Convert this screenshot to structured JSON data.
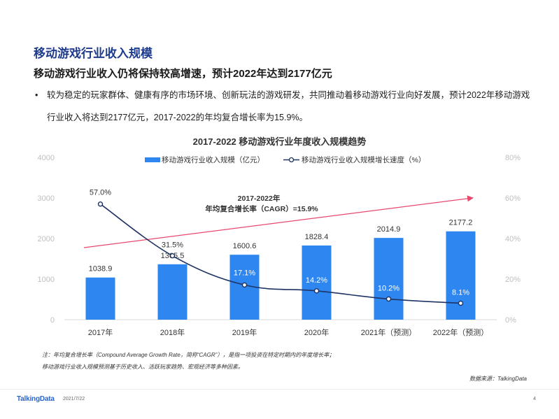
{
  "page": {
    "title": "移动游戏行业收入规模",
    "subtitle": "移动游戏行业收入仍将保持较高增速，预计2022年达到2177亿元",
    "bullet_marker": "•",
    "bullet": "较为稳定的玩家群体、健康有序的市场环境、创新玩法的游戏研发，共同推动着移动游戏行业向好发展，预计2022年移动游戏行业收入将达到2177亿元，2017-2022的年均复合增长率为15.9%。",
    "note1": "注：年均复合增长率（Compound Average Growth Rate，简称“CAGR”），是指一项投资在特定时期内的年度增长率；",
    "note2": "移动游戏行业收入规模预测基于历史收入、活跃玩家趋势、宏观经济等多种因素。",
    "source": "数据来源：TalkingData",
    "logo": "TalkingData",
    "date": "2021/7/22",
    "page_number": "4"
  },
  "chart_data": {
    "type": "bar",
    "title": "2017-2022  移动游戏行业年度收入规模趋势",
    "categories": [
      "2017年",
      "2018年",
      "2019年",
      "2020年",
      "2021年（预测）",
      "2022年（预测）"
    ],
    "series": [
      {
        "name": "移动游戏行业收入规模（亿元）",
        "type": "bar",
        "axis": "left",
        "values": [
          1038.9,
          1365.5,
          1600.6,
          1828.4,
          2014.9,
          2177.2
        ],
        "labels": [
          "1038.9",
          "1365.5",
          "1600.6",
          "1828.4",
          "2014.9",
          "2177.2"
        ],
        "color": "#2e86f0"
      },
      {
        "name": "移动游戏行业收入规模增长速度（%）",
        "type": "line",
        "axis": "right",
        "values": [
          57.0,
          31.5,
          17.1,
          14.2,
          10.2,
          8.1
        ],
        "labels": [
          "57.0%",
          "31.5%",
          "17.1%",
          "14.2%",
          "10.2%",
          "8.1%"
        ],
        "color": "#1f3464"
      }
    ],
    "y_left": {
      "min": 0,
      "max": 4000,
      "ticks": [
        "0",
        "1000",
        "2000",
        "3000",
        "4000"
      ]
    },
    "y_right": {
      "min": 0,
      "max": 80,
      "ticks": [
        "0%",
        "20%",
        "40%",
        "60%",
        "80%"
      ]
    },
    "cagr_annotation": {
      "line1": "2017-2022年",
      "line2": "年均复合增长率（CAGR）=15.9%"
    },
    "trend_arrow_color": "#e8476e",
    "legend_position": "top",
    "grid": false
  }
}
